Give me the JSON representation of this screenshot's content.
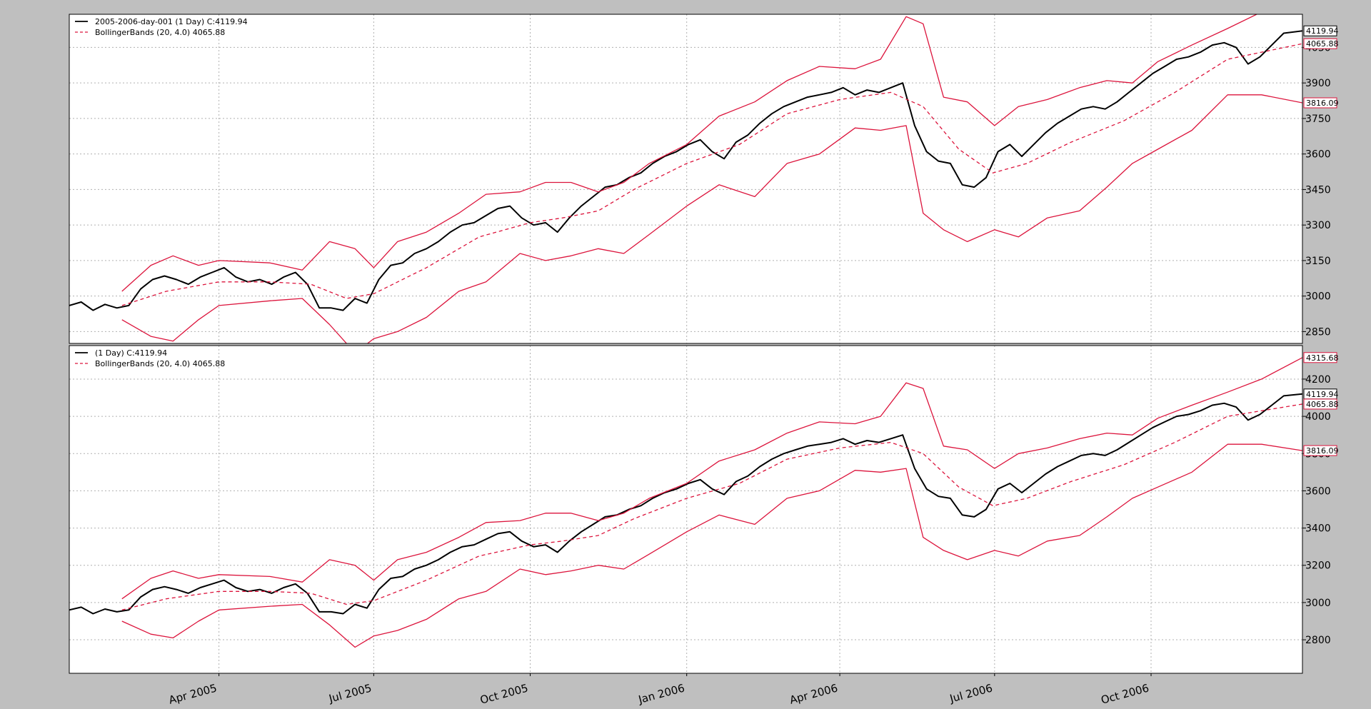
{
  "colors": {
    "figure_background": "#bfbfbf",
    "axes_background": "#ffffff",
    "close_line": "#000000",
    "bands": "#dc143c",
    "grid": "#b0b0b0"
  },
  "date_axis": {
    "start": "2005-01-03",
    "end": "2006-12-29",
    "tick_labels": [
      "Apr 2005",
      "Jul 2005",
      "Oct 2005",
      "Jan 2006",
      "Apr 2006",
      "Jul 2006",
      "Oct 2006"
    ],
    "tick_dates": [
      "2005-04-01",
      "2005-07-01",
      "2005-10-01",
      "2006-01-01",
      "2006-04-01",
      "2006-07-01",
      "2006-10-01"
    ],
    "label_rotation": "slanted"
  },
  "chart_data": [
    {
      "type": "line",
      "title": "",
      "grid": true,
      "legend_position": "top-left",
      "ylim": [
        2800,
        4190
      ],
      "yticks": [
        2850,
        3000,
        3150,
        3300,
        3450,
        3600,
        3750,
        3900,
        4050
      ],
      "legend": [
        {
          "text": "2005-2006-day-001 (1 Day) C:4119.94",
          "style": "solid",
          "color": "#000000"
        },
        {
          "text": "BollingerBands (20, 4.0) 4065.88",
          "style": "dashed",
          "color": "#dc143c"
        }
      ],
      "value_tags": [
        {
          "text": "4119.94",
          "value": 4119.94,
          "color": "#000000"
        },
        {
          "text": "4065.88",
          "value": 4065.88,
          "color": "#dc143c"
        },
        {
          "text": "3816.09",
          "value": 3816.09,
          "color": "#dc143c"
        }
      ],
      "series_ref": [
        "close",
        "mid",
        "top",
        "bot"
      ]
    },
    {
      "type": "line",
      "title": "",
      "grid": true,
      "legend_position": "top-left",
      "ylim": [
        2620,
        4380
      ],
      "yticks": [
        2800,
        3000,
        3200,
        3400,
        3600,
        3800,
        4000,
        4200
      ],
      "legend": [
        {
          "text": " (1 Day) C:4119.94",
          "style": "solid",
          "color": "#000000"
        },
        {
          "text": "BollingerBands (20, 4.0) 4065.88",
          "style": "dashed",
          "color": "#dc143c"
        }
      ],
      "value_tags": [
        {
          "text": "4315.68",
          "value": 4315.68,
          "color": "#dc143c"
        },
        {
          "text": "4119.94",
          "value": 4119.94,
          "color": "#000000"
        },
        {
          "text": "4065.88",
          "value": 4065.88,
          "color": "#dc143c"
        },
        {
          "text": "3816.09",
          "value": 3816.09,
          "color": "#dc143c"
        }
      ],
      "series_ref": [
        "close",
        "mid",
        "top",
        "bot"
      ]
    }
  ],
  "series": {
    "close": {
      "style": "solid",
      "points": [
        [
          "2005-01-03",
          2960
        ],
        [
          "2005-01-10",
          2975
        ],
        [
          "2005-01-17",
          2940
        ],
        [
          "2005-01-24",
          2965
        ],
        [
          "2005-01-31",
          2950
        ],
        [
          "2005-02-07",
          2960
        ],
        [
          "2005-02-14",
          3030
        ],
        [
          "2005-02-21",
          3070
        ],
        [
          "2005-02-28",
          3085
        ],
        [
          "2005-03-07",
          3070
        ],
        [
          "2005-03-14",
          3050
        ],
        [
          "2005-03-21",
          3080
        ],
        [
          "2005-03-28",
          3100
        ],
        [
          "2005-04-04",
          3120
        ],
        [
          "2005-04-11",
          3080
        ],
        [
          "2005-04-18",
          3060
        ],
        [
          "2005-04-25",
          3070
        ],
        [
          "2005-05-02",
          3050
        ],
        [
          "2005-05-09",
          3080
        ],
        [
          "2005-05-16",
          3100
        ],
        [
          "2005-05-23",
          3050
        ],
        [
          "2005-05-30",
          2950
        ],
        [
          "2005-06-06",
          2950
        ],
        [
          "2005-06-13",
          2940
        ],
        [
          "2005-06-20",
          2990
        ],
        [
          "2005-06-27",
          2970
        ],
        [
          "2005-07-04",
          3070
        ],
        [
          "2005-07-11",
          3130
        ],
        [
          "2005-07-18",
          3140
        ],
        [
          "2005-07-25",
          3180
        ],
        [
          "2005-08-01",
          3200
        ],
        [
          "2005-08-08",
          3230
        ],
        [
          "2005-08-15",
          3270
        ],
        [
          "2005-08-22",
          3300
        ],
        [
          "2005-08-29",
          3310
        ],
        [
          "2005-09-05",
          3340
        ],
        [
          "2005-09-12",
          3370
        ],
        [
          "2005-09-19",
          3380
        ],
        [
          "2005-09-26",
          3330
        ],
        [
          "2005-10-03",
          3300
        ],
        [
          "2005-10-10",
          3310
        ],
        [
          "2005-10-17",
          3270
        ],
        [
          "2005-10-24",
          3330
        ],
        [
          "2005-10-31",
          3380
        ],
        [
          "2005-11-07",
          3420
        ],
        [
          "2005-11-14",
          3460
        ],
        [
          "2005-11-21",
          3470
        ],
        [
          "2005-11-28",
          3500
        ],
        [
          "2005-12-05",
          3520
        ],
        [
          "2005-12-12",
          3560
        ],
        [
          "2005-12-19",
          3590
        ],
        [
          "2005-12-26",
          3610
        ],
        [
          "2006-01-02",
          3640
        ],
        [
          "2006-01-09",
          3660
        ],
        [
          "2006-01-16",
          3610
        ],
        [
          "2006-01-23",
          3580
        ],
        [
          "2006-01-30",
          3650
        ],
        [
          "2006-02-06",
          3680
        ],
        [
          "2006-02-13",
          3730
        ],
        [
          "2006-02-20",
          3770
        ],
        [
          "2006-02-27",
          3800
        ],
        [
          "2006-03-06",
          3820
        ],
        [
          "2006-03-13",
          3840
        ],
        [
          "2006-03-20",
          3850
        ],
        [
          "2006-03-27",
          3860
        ],
        [
          "2006-04-03",
          3880
        ],
        [
          "2006-04-10",
          3850
        ],
        [
          "2006-04-17",
          3870
        ],
        [
          "2006-04-24",
          3860
        ],
        [
          "2006-05-01",
          3880
        ],
        [
          "2006-05-08",
          3900
        ],
        [
          "2006-05-15",
          3720
        ],
        [
          "2006-05-22",
          3610
        ],
        [
          "2006-05-29",
          3570
        ],
        [
          "2006-06-05",
          3560
        ],
        [
          "2006-06-12",
          3470
        ],
        [
          "2006-06-19",
          3460
        ],
        [
          "2006-06-26",
          3500
        ],
        [
          "2006-07-03",
          3610
        ],
        [
          "2006-07-10",
          3640
        ],
        [
          "2006-07-17",
          3590
        ],
        [
          "2006-07-24",
          3640
        ],
        [
          "2006-07-31",
          3690
        ],
        [
          "2006-08-07",
          3730
        ],
        [
          "2006-08-14",
          3760
        ],
        [
          "2006-08-21",
          3790
        ],
        [
          "2006-08-28",
          3800
        ],
        [
          "2006-09-04",
          3790
        ],
        [
          "2006-09-11",
          3820
        ],
        [
          "2006-09-18",
          3860
        ],
        [
          "2006-09-25",
          3900
        ],
        [
          "2006-10-02",
          3940
        ],
        [
          "2006-10-09",
          3970
        ],
        [
          "2006-10-16",
          4000
        ],
        [
          "2006-10-23",
          4010
        ],
        [
          "2006-10-30",
          4030
        ],
        [
          "2006-11-06",
          4060
        ],
        [
          "2006-11-13",
          4070
        ],
        [
          "2006-11-20",
          4050
        ],
        [
          "2006-11-27",
          3980
        ],
        [
          "2006-12-04",
          4010
        ],
        [
          "2006-12-11",
          4060
        ],
        [
          "2006-12-18",
          4110
        ],
        [
          "2006-12-29",
          4119.94
        ]
      ]
    },
    "mid": {
      "style": "dashed",
      "points": [
        [
          "2005-02-03",
          2960
        ],
        [
          "2005-03-01",
          3020
        ],
        [
          "2005-04-01",
          3060
        ],
        [
          "2005-05-01",
          3060
        ],
        [
          "2005-05-25",
          3050
        ],
        [
          "2005-06-15",
          2990
        ],
        [
          "2005-07-01",
          3010
        ],
        [
          "2005-08-01",
          3120
        ],
        [
          "2005-09-01",
          3250
        ],
        [
          "2005-10-01",
          3310
        ],
        [
          "2005-10-20",
          3330
        ],
        [
          "2005-11-10",
          3360
        ],
        [
          "2005-12-01",
          3450
        ],
        [
          "2006-01-01",
          3560
        ],
        [
          "2006-02-01",
          3640
        ],
        [
          "2006-03-01",
          3770
        ],
        [
          "2006-04-01",
          3830
        ],
        [
          "2006-05-01",
          3860
        ],
        [
          "2006-05-20",
          3800
        ],
        [
          "2006-06-10",
          3620
        ],
        [
          "2006-06-30",
          3520
        ],
        [
          "2006-07-20",
          3560
        ],
        [
          "2006-08-15",
          3650
        ],
        [
          "2006-09-15",
          3740
        ],
        [
          "2006-10-15",
          3860
        ],
        [
          "2006-11-15",
          4000
        ],
        [
          "2006-12-29",
          4065.88
        ]
      ]
    },
    "top": {
      "style": "solid",
      "points": [
        [
          "2005-02-03",
          3020
        ],
        [
          "2005-02-20",
          3130
        ],
        [
          "2005-03-05",
          3170
        ],
        [
          "2005-03-20",
          3130
        ],
        [
          "2005-04-01",
          3150
        ],
        [
          "2005-05-01",
          3140
        ],
        [
          "2005-05-20",
          3110
        ],
        [
          "2005-06-05",
          3230
        ],
        [
          "2005-06-20",
          3200
        ],
        [
          "2005-07-01",
          3120
        ],
        [
          "2005-07-15",
          3230
        ],
        [
          "2005-08-01",
          3270
        ],
        [
          "2005-08-20",
          3350
        ],
        [
          "2005-09-05",
          3430
        ],
        [
          "2005-09-25",
          3440
        ],
        [
          "2005-10-10",
          3480
        ],
        [
          "2005-10-25",
          3480
        ],
        [
          "2005-11-10",
          3440
        ],
        [
          "2005-11-25",
          3480
        ],
        [
          "2005-12-10",
          3560
        ],
        [
          "2006-01-01",
          3640
        ],
        [
          "2006-01-20",
          3760
        ],
        [
          "2006-02-10",
          3820
        ],
        [
          "2006-03-01",
          3910
        ],
        [
          "2006-03-20",
          3970
        ],
        [
          "2006-04-10",
          3960
        ],
        [
          "2006-04-25",
          4000
        ],
        [
          "2006-05-10",
          4180
        ],
        [
          "2006-05-20",
          4150
        ],
        [
          "2006-06-01",
          3840
        ],
        [
          "2006-06-15",
          3820
        ],
        [
          "2006-07-01",
          3720
        ],
        [
          "2006-07-15",
          3800
        ],
        [
          "2006-08-01",
          3830
        ],
        [
          "2006-08-20",
          3880
        ],
        [
          "2006-09-05",
          3910
        ],
        [
          "2006-09-20",
          3900
        ],
        [
          "2006-10-05",
          3990
        ],
        [
          "2006-10-25",
          4060
        ],
        [
          "2006-11-15",
          4130
        ],
        [
          "2006-12-05",
          4200
        ],
        [
          "2006-12-29",
          4315.68
        ]
      ]
    },
    "bot": {
      "style": "solid",
      "points": [
        [
          "2005-02-03",
          2900
        ],
        [
          "2005-02-20",
          2830
        ],
        [
          "2005-03-05",
          2810
        ],
        [
          "2005-03-20",
          2900
        ],
        [
          "2005-04-01",
          2960
        ],
        [
          "2005-05-01",
          2980
        ],
        [
          "2005-05-20",
          2990
        ],
        [
          "2005-06-05",
          2880
        ],
        [
          "2005-06-20",
          2760
        ],
        [
          "2005-07-01",
          2820
        ],
        [
          "2005-07-15",
          2850
        ],
        [
          "2005-08-01",
          2910
        ],
        [
          "2005-08-20",
          3020
        ],
        [
          "2005-09-05",
          3060
        ],
        [
          "2005-09-25",
          3180
        ],
        [
          "2005-10-10",
          3150
        ],
        [
          "2005-10-25",
          3170
        ],
        [
          "2005-11-10",
          3200
        ],
        [
          "2005-11-25",
          3180
        ],
        [
          "2005-12-10",
          3260
        ],
        [
          "2006-01-01",
          3380
        ],
        [
          "2006-01-20",
          3470
        ],
        [
          "2006-02-10",
          3420
        ],
        [
          "2006-03-01",
          3560
        ],
        [
          "2006-03-20",
          3600
        ],
        [
          "2006-04-10",
          3710
        ],
        [
          "2006-04-25",
          3700
        ],
        [
          "2006-05-10",
          3720
        ],
        [
          "2006-05-20",
          3350
        ],
        [
          "2006-06-01",
          3280
        ],
        [
          "2006-06-15",
          3230
        ],
        [
          "2006-07-01",
          3280
        ],
        [
          "2006-07-15",
          3250
        ],
        [
          "2006-08-01",
          3330
        ],
        [
          "2006-08-20",
          3360
        ],
        [
          "2006-09-05",
          3460
        ],
        [
          "2006-09-20",
          3560
        ],
        [
          "2006-10-05",
          3620
        ],
        [
          "2006-10-25",
          3700
        ],
        [
          "2006-11-15",
          3850
        ],
        [
          "2006-12-05",
          3850
        ],
        [
          "2006-12-29",
          3816.09
        ]
      ]
    }
  }
}
